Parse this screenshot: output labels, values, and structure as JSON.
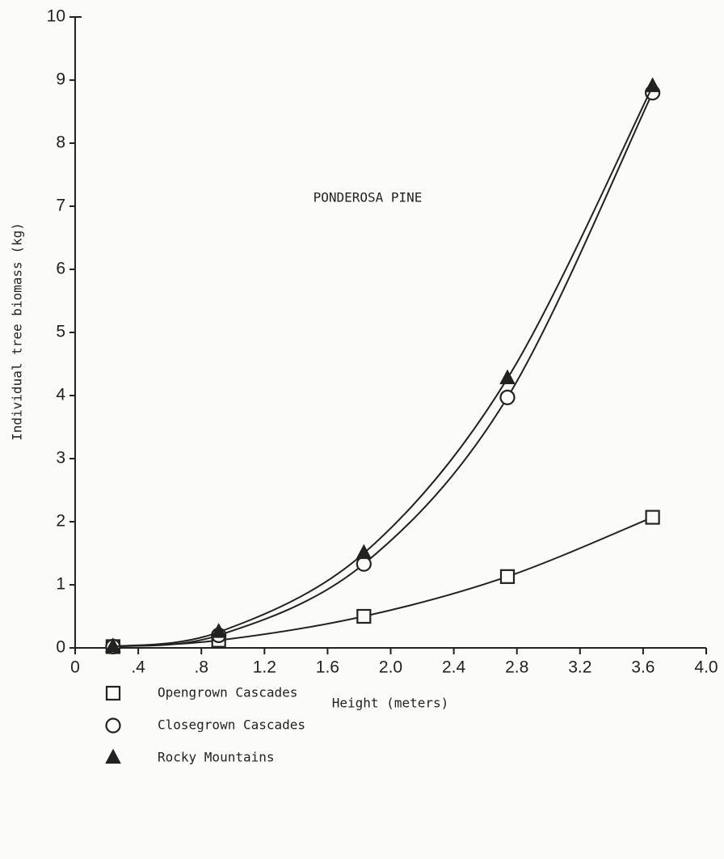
{
  "chart_data": {
    "type": "line",
    "annotation": "PONDEROSA PINE",
    "x_label": "Height (meters)",
    "y_label": "Individual tree biomass (kg)",
    "x": [
      0.24,
      0.91,
      1.83,
      2.74,
      3.66
    ],
    "series": [
      {
        "name": "Opengrown Cascades",
        "color": "#222222",
        "marker": "square",
        "values": [
          0.02,
          0.12,
          0.5,
          1.13,
          2.07
        ]
      },
      {
        "name": "Closegrown Cascades",
        "color": "#222222",
        "marker": "circle",
        "values": [
          0.02,
          0.2,
          1.33,
          3.97,
          8.8
        ]
      },
      {
        "name": "Rocky Mountains",
        "color": "#222222",
        "marker": "triangle",
        "values": [
          0.02,
          0.25,
          1.5,
          4.27,
          8.9
        ]
      }
    ],
    "xlim": [
      0,
      4.0
    ],
    "xticks": [
      0,
      {
        "value": 0.4,
        "label": ".4"
      },
      {
        "value": 0.8,
        "label": ".8"
      },
      1.2,
      1.6,
      {
        "value": 2.0,
        "label": "2.0"
      },
      2.4,
      2.8,
      3.2,
      3.6,
      {
        "value": 4.0,
        "label": "4.0"
      }
    ],
    "ylim": [
      0,
      10
    ],
    "yticks": [
      0,
      1,
      2,
      3,
      4,
      5,
      6,
      7,
      8,
      9,
      10
    ],
    "grid": false,
    "legend": "below"
  }
}
